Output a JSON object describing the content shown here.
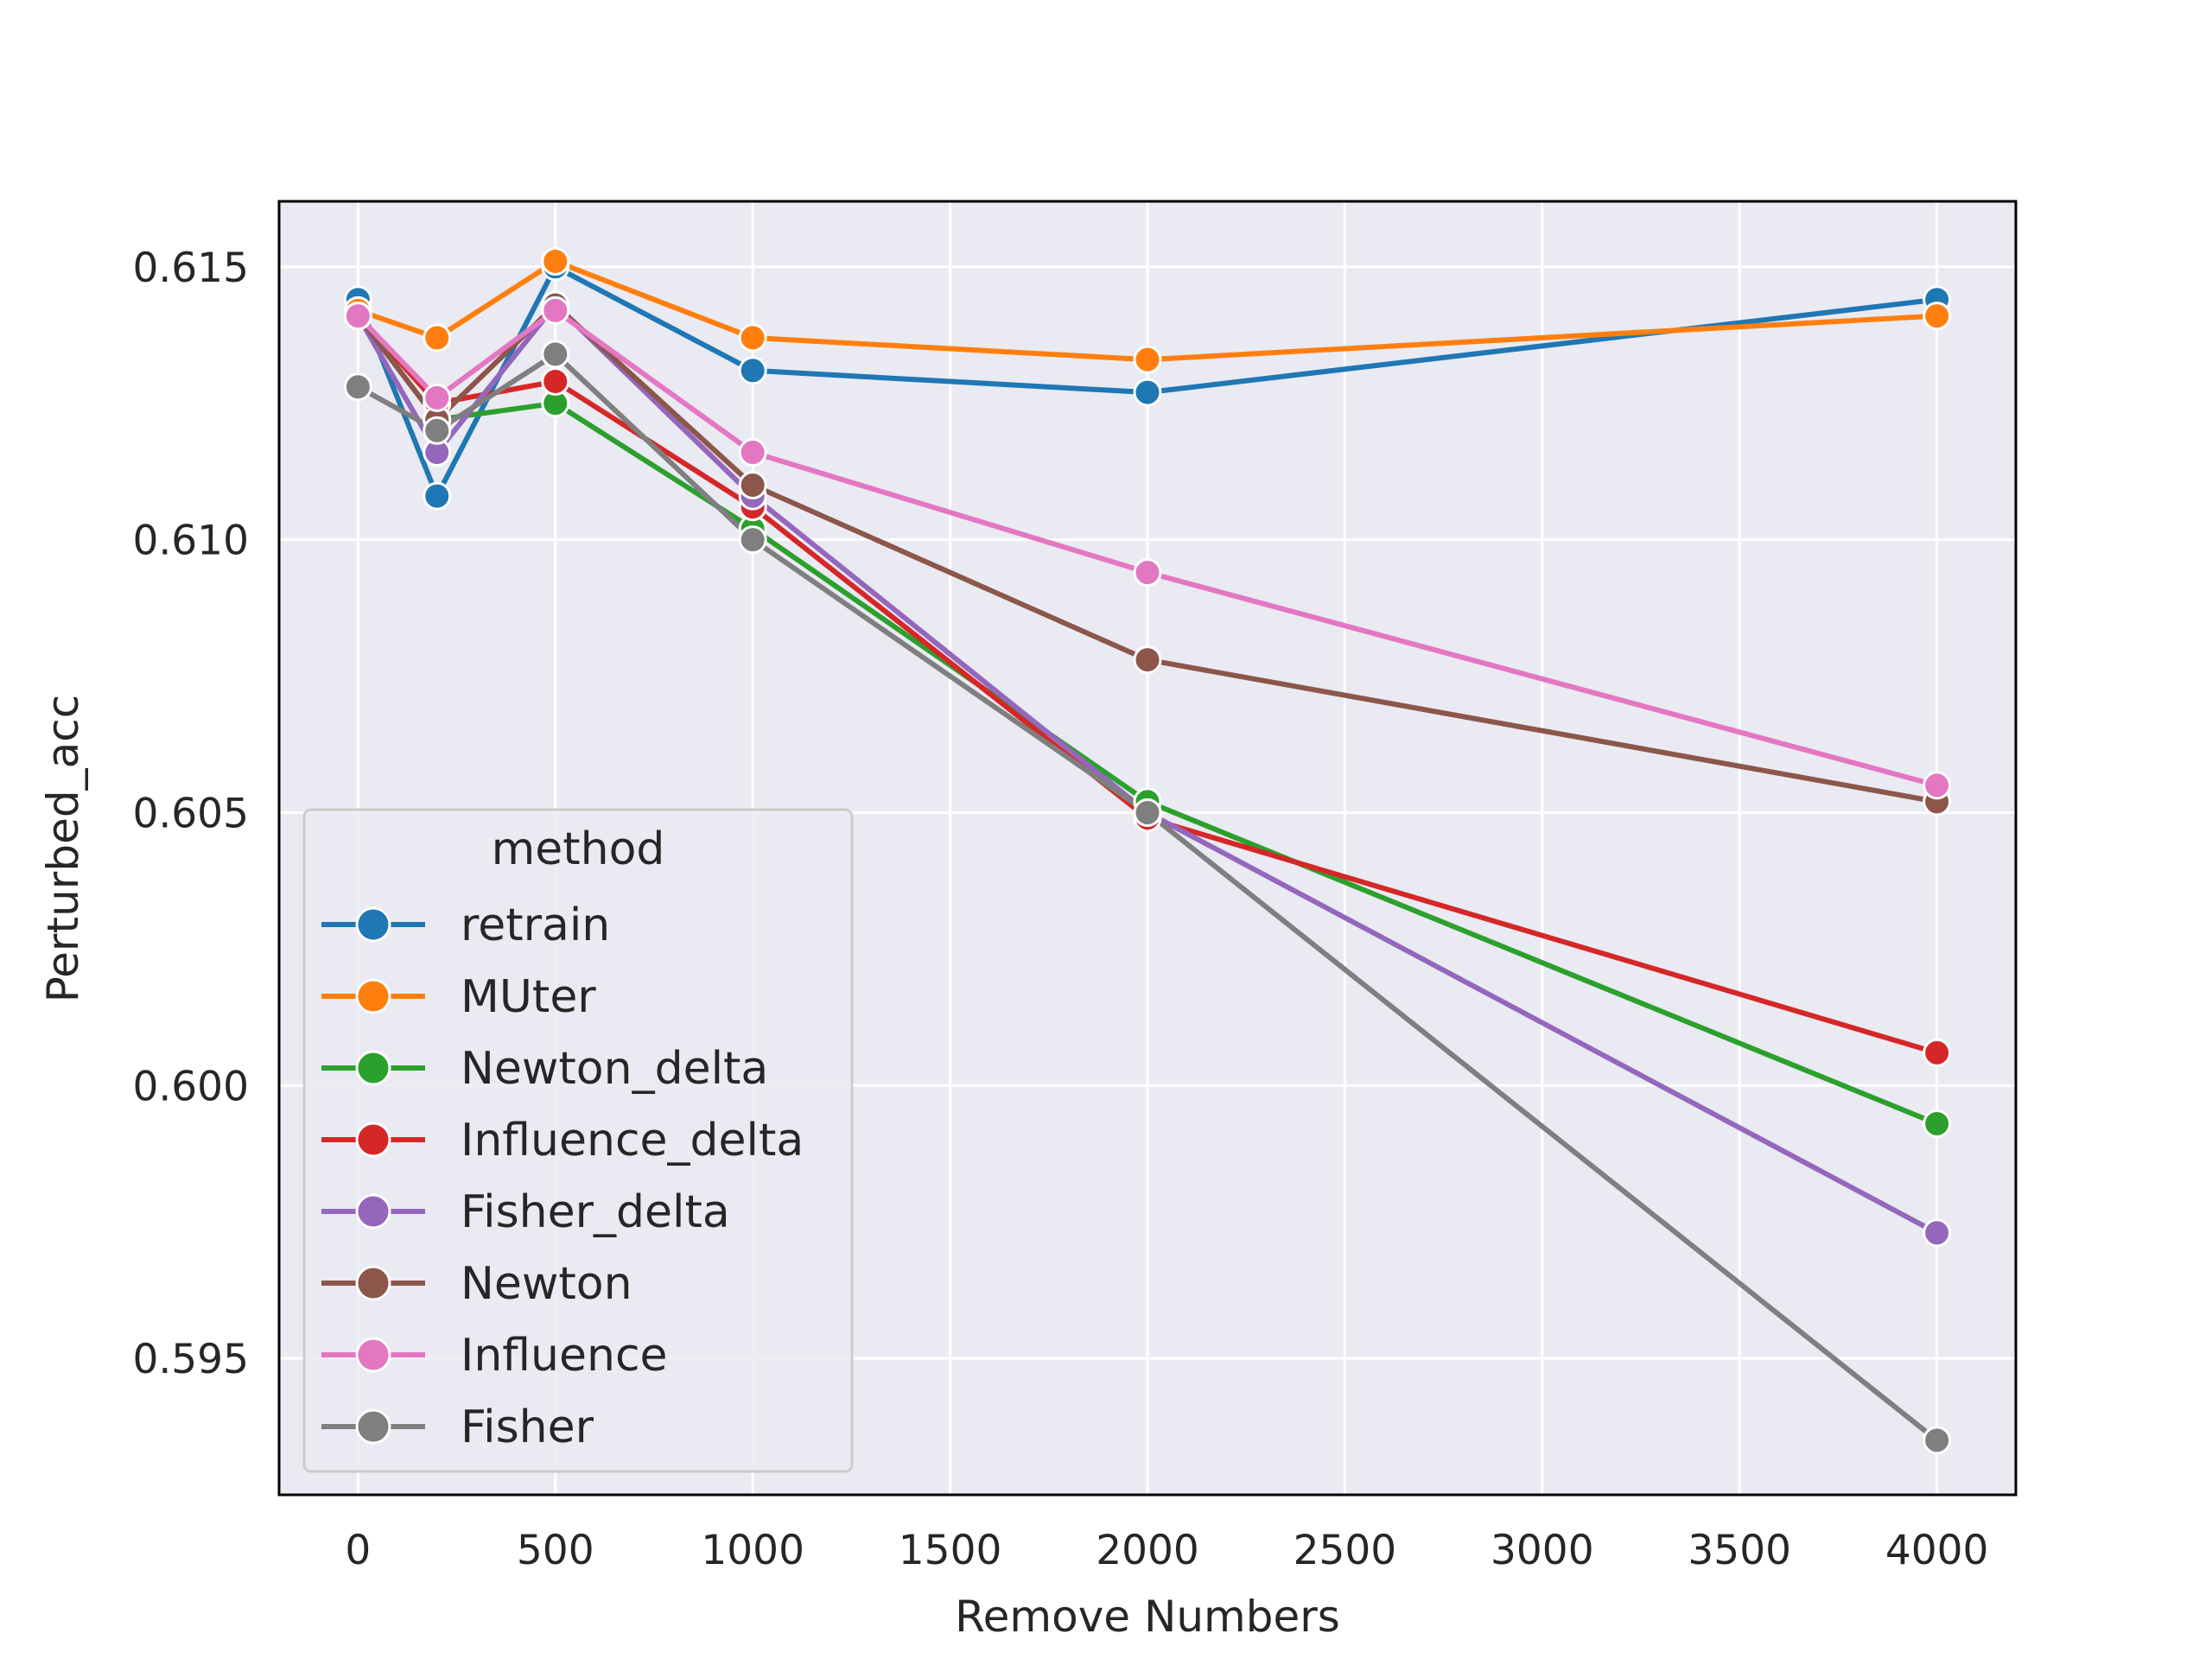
{
  "chart_data": {
    "type": "line",
    "title": "",
    "xlabel": "Remove Numbers",
    "ylabel": "Perturbed_acc",
    "xlim": [
      -200,
      4200
    ],
    "ylim": [
      0.5925,
      0.6162
    ],
    "xticks": [
      0,
      500,
      1000,
      1500,
      2000,
      2500,
      3000,
      3500,
      4000
    ],
    "yticks": [
      0.595,
      0.6,
      0.605,
      0.61,
      0.615
    ],
    "xtick_labels": [
      "0",
      "500",
      "1000",
      "1500",
      "2000",
      "2500",
      "3000",
      "3500",
      "4000"
    ],
    "ytick_labels": [
      "0.595",
      "0.600",
      "0.605",
      "0.610",
      "0.615"
    ],
    "grid": true,
    "legend": {
      "title": "method",
      "placement": "lower-left"
    },
    "x": [
      0,
      200,
      500,
      1000,
      2000,
      4000
    ],
    "series": [
      {
        "name": "retrain",
        "color": "#1f77b4",
        "values": [
          0.6144,
          0.6108,
          0.615,
          0.6131,
          0.6127,
          0.6144
        ]
      },
      {
        "name": "MUter",
        "color": "#ff7f0e",
        "values": [
          0.6142,
          0.6137,
          0.6151,
          0.6137,
          0.6133,
          0.6141
        ]
      },
      {
        "name": "Newton_delta",
        "color": "#2ca02c",
        "values": [
          0.6141,
          0.6122,
          0.6125,
          0.6102,
          0.6052,
          0.5993
        ]
      },
      {
        "name": "Influence_delta",
        "color": "#d62728",
        "values": [
          0.6141,
          0.6125,
          0.6129,
          0.6106,
          0.6049,
          0.6006
        ]
      },
      {
        "name": "Fisher_delta",
        "color": "#9467bd",
        "values": [
          0.6141,
          0.6116,
          0.6143,
          0.6108,
          0.605,
          0.5973
        ]
      },
      {
        "name": "Newton",
        "color": "#8c564b",
        "values": [
          0.6141,
          0.6122,
          0.6143,
          0.611,
          0.6078,
          0.6052
        ]
      },
      {
        "name": "Influence",
        "color": "#e377c2",
        "values": [
          0.6141,
          0.6126,
          0.6142,
          0.6116,
          0.6094,
          0.6055
        ]
      },
      {
        "name": "Fisher",
        "color": "#7f7f7f",
        "values": [
          0.6128,
          0.612,
          0.6134,
          0.61,
          0.605,
          0.5935
        ]
      }
    ]
  }
}
